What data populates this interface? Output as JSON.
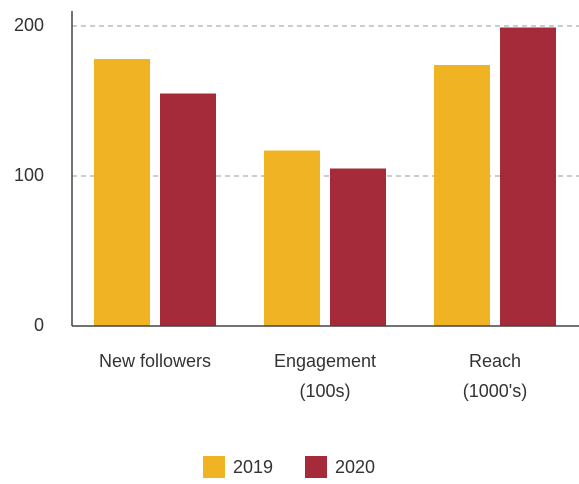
{
  "chart_data": {
    "type": "bar",
    "categories": [
      "New followers",
      "Engagement (100s)",
      "Reach (1000's)"
    ],
    "series": [
      {
        "name": "2019",
        "color": "#f0b323",
        "values": [
          178,
          117,
          174
        ]
      },
      {
        "name": "2020",
        "color": "#a52a3a",
        "values": [
          155,
          105,
          199
        ]
      }
    ],
    "ylim": [
      0,
      210
    ],
    "yticks": [
      0,
      100,
      200
    ],
    "grid": true,
    "legend": "bottom"
  }
}
